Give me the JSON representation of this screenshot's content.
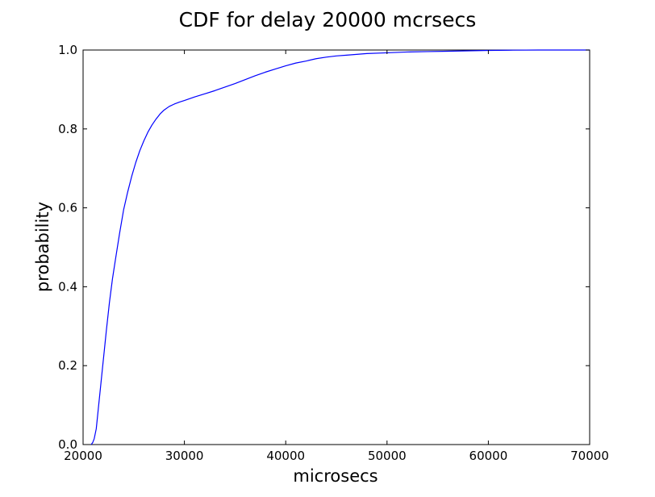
{
  "chart_data": {
    "type": "line",
    "title": "CDF for delay 20000 mcrsecs",
    "xlabel": "microsecs",
    "ylabel": "probability",
    "xlim": [
      20000,
      70000
    ],
    "ylim": [
      0,
      1
    ],
    "xticks": [
      20000,
      30000,
      40000,
      50000,
      60000,
      70000
    ],
    "xtick_labels": [
      "20000",
      "30000",
      "40000",
      "50000",
      "60000",
      "70000"
    ],
    "yticks": [
      0.0,
      0.2,
      0.4,
      0.6,
      0.8,
      1.0
    ],
    "ytick_labels": [
      "0.0",
      "0.2",
      "0.4",
      "0.6",
      "0.8",
      "1.0"
    ],
    "grid": false,
    "legend": "none",
    "series": [
      {
        "color": "#0000ff",
        "x": [
          20800,
          20950,
          21100,
          21300,
          21500,
          21700,
          21900,
          22100,
          22300,
          22600,
          22900,
          23200,
          23600,
          24000,
          24400,
          24800,
          25200,
          25600,
          26000,
          26400,
          26800,
          27200,
          27600,
          28000,
          28500,
          29000,
          29500,
          30000,
          31000,
          32000,
          33000,
          34000,
          35000,
          36000,
          37000,
          38000,
          39000,
          40000,
          41000,
          42000,
          43000,
          44000,
          45000,
          46000,
          47000,
          48000,
          50000,
          52000,
          54000,
          56000,
          58000,
          60000,
          62000,
          65000,
          68000,
          70000
        ],
        "y": [
          0.0,
          0.005,
          0.015,
          0.04,
          0.09,
          0.14,
          0.19,
          0.24,
          0.29,
          0.36,
          0.42,
          0.47,
          0.535,
          0.595,
          0.64,
          0.68,
          0.715,
          0.745,
          0.77,
          0.792,
          0.81,
          0.825,
          0.838,
          0.848,
          0.857,
          0.863,
          0.868,
          0.872,
          0.881,
          0.889,
          0.897,
          0.906,
          0.915,
          0.925,
          0.935,
          0.944,
          0.952,
          0.96,
          0.967,
          0.972,
          0.978,
          0.982,
          0.985,
          0.987,
          0.989,
          0.991,
          0.993,
          0.995,
          0.996,
          0.997,
          0.998,
          0.999,
          0.9995,
          1.0,
          1.0,
          1.0
        ]
      }
    ]
  }
}
